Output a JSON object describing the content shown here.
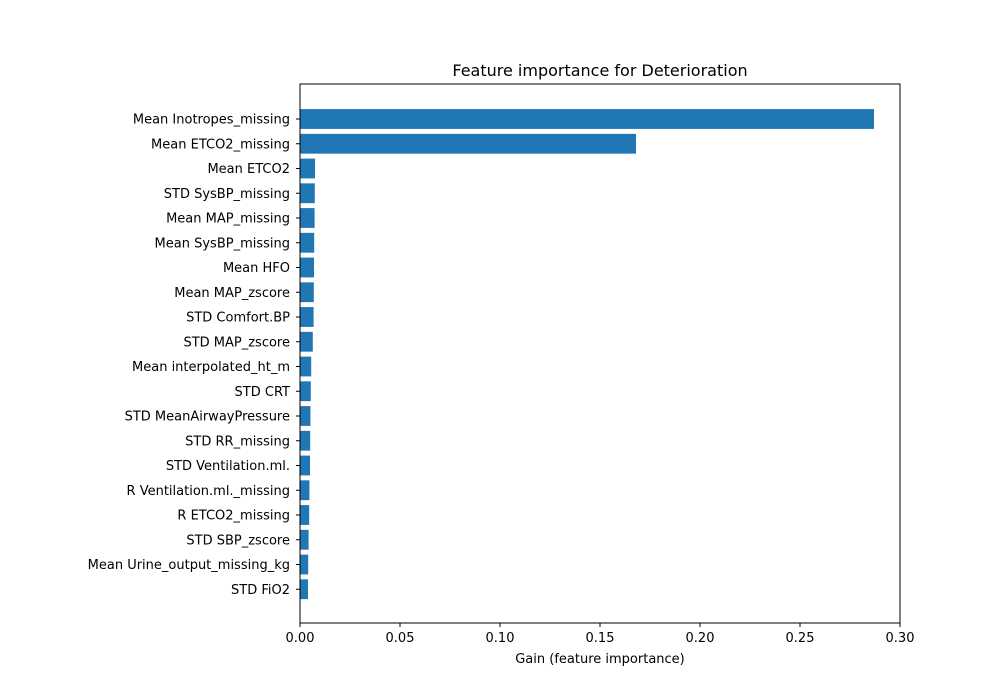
{
  "chart_data": {
    "type": "bar",
    "orientation": "horizontal",
    "title": "Feature importance for Deterioration",
    "xlabel": "Gain (feature importance)",
    "ylabel": "",
    "xlim": [
      0,
      0.3
    ],
    "xticks": [
      "0.00",
      "0.05",
      "0.10",
      "0.15",
      "0.20",
      "0.25",
      "0.30"
    ],
    "grid": false,
    "color": "#1f77b4",
    "categories": [
      "Mean Inotropes_missing",
      "Mean ETCO2_missing",
      "Mean ETCO2",
      "STD SysBP_missing",
      "Mean MAP_missing",
      "Mean SysBP_missing",
      "Mean HFO",
      "Mean MAP_zscore",
      "STD Comfort.BP",
      "STD MAP_zscore",
      "Mean interpolated_ht_m",
      "STD CRT",
      "STD MeanAirwayPressure",
      "STD RR_missing",
      "STD Ventilation.ml.",
      "R Ventilation.ml._missing",
      "R ETCO2_missing",
      "STD SBP_zscore",
      "Mean Urine_output_missing_kg",
      "STD FiO2"
    ],
    "values": [
      0.287,
      0.168,
      0.0075,
      0.0074,
      0.0073,
      0.0071,
      0.007,
      0.0069,
      0.0068,
      0.0064,
      0.0056,
      0.0054,
      0.0052,
      0.0051,
      0.005,
      0.0047,
      0.0046,
      0.0043,
      0.0041,
      0.004
    ]
  }
}
